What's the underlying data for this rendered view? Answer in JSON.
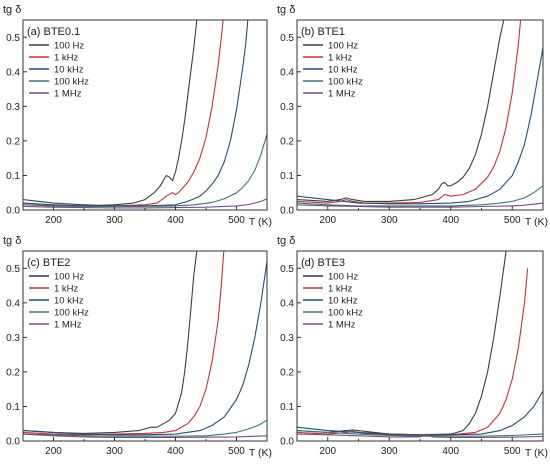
{
  "chart_data": [
    {
      "type": "line",
      "title": "(a) BTE0.1",
      "ylabel": "tg δ",
      "xlabel": "T (K)",
      "xlim": [
        150,
        550
      ],
      "ylim": [
        0,
        0.55
      ],
      "xticks": [
        200,
        300,
        400,
        500
      ],
      "yticks": [
        0.0,
        0.1,
        0.2,
        0.3,
        0.4,
        0.5
      ],
      "legend": "top-left",
      "grid": false,
      "series": [
        {
          "name": "100 Hz",
          "color": "#3d3d3d",
          "x": [
            150,
            200,
            250,
            300,
            330,
            350,
            365,
            375,
            380,
            385,
            390,
            395,
            400,
            405,
            410,
            415,
            420,
            425,
            430,
            435,
            440,
            445,
            450
          ],
          "y": [
            0.02,
            0.015,
            0.012,
            0.015,
            0.02,
            0.03,
            0.05,
            0.07,
            0.085,
            0.1,
            0.095,
            0.085,
            0.11,
            0.15,
            0.2,
            0.26,
            0.33,
            0.4,
            0.47,
            0.55,
            0.6,
            0.6,
            0.6
          ]
        },
        {
          "name": "1 kHz",
          "color": "#c0343c",
          "x": [
            150,
            200,
            250,
            300,
            350,
            370,
            385,
            395,
            400,
            405,
            410,
            415,
            420,
            430,
            440,
            450,
            460,
            470,
            475,
            480
          ],
          "y": [
            0.015,
            0.012,
            0.01,
            0.012,
            0.015,
            0.02,
            0.04,
            0.05,
            0.045,
            0.05,
            0.06,
            0.07,
            0.08,
            0.11,
            0.15,
            0.21,
            0.3,
            0.42,
            0.5,
            0.58
          ]
        },
        {
          "name": "10 kHz",
          "color": "#2b4c6f",
          "x": [
            150,
            200,
            250,
            300,
            350,
            400,
            420,
            440,
            450,
            460,
            470,
            480,
            490,
            500,
            510,
            515,
            520
          ],
          "y": [
            0.03,
            0.02,
            0.015,
            0.012,
            0.012,
            0.015,
            0.025,
            0.04,
            0.055,
            0.075,
            0.1,
            0.14,
            0.2,
            0.29,
            0.41,
            0.48,
            0.58
          ]
        },
        {
          "name": "100 kHz",
          "color": "#3a7a6c",
          "x": [
            150,
            200,
            250,
            300,
            350,
            400,
            430,
            460,
            480,
            500,
            510,
            520,
            530,
            540,
            550
          ],
          "y": [
            0.015,
            0.012,
            0.01,
            0.01,
            0.01,
            0.012,
            0.015,
            0.022,
            0.032,
            0.05,
            0.065,
            0.085,
            0.115,
            0.16,
            0.22
          ]
        },
        {
          "name": "1 MHz",
          "color": "#7b4a8e",
          "x": [
            150,
            200,
            250,
            300,
            350,
            400,
            450,
            500,
            520,
            540,
            550
          ],
          "y": [
            0.01,
            0.008,
            0.007,
            0.006,
            0.006,
            0.007,
            0.008,
            0.012,
            0.016,
            0.025,
            0.032
          ]
        }
      ]
    },
    {
      "type": "line",
      "title": "(b) BTE1",
      "ylabel": "tg δ",
      "xlabel": "T (K)",
      "xlim": [
        150,
        550
      ],
      "ylim": [
        0,
        0.55
      ],
      "xticks": [
        200,
        300,
        400,
        500
      ],
      "yticks": [
        0.0,
        0.1,
        0.2,
        0.3,
        0.4,
        0.5
      ],
      "legend": "top-left",
      "grid": false,
      "series": [
        {
          "name": "100 Hz",
          "color": "#3d3d3d",
          "x": [
            150,
            200,
            220,
            230,
            240,
            260,
            300,
            340,
            370,
            380,
            385,
            390,
            395,
            400,
            410,
            420,
            430,
            440,
            450,
            460,
            470,
            480,
            490,
            495
          ],
          "y": [
            0.03,
            0.025,
            0.03,
            0.035,
            0.03,
            0.025,
            0.025,
            0.03,
            0.045,
            0.06,
            0.075,
            0.08,
            0.07,
            0.07,
            0.08,
            0.095,
            0.12,
            0.16,
            0.22,
            0.3,
            0.4,
            0.5,
            0.58,
            0.6
          ]
        },
        {
          "name": "1 kHz",
          "color": "#c0343c",
          "x": [
            150,
            200,
            220,
            230,
            240,
            260,
            300,
            350,
            380,
            390,
            400,
            420,
            440,
            460,
            470,
            480,
            490,
            500,
            510,
            515
          ],
          "y": [
            0.025,
            0.02,
            0.025,
            0.03,
            0.025,
            0.02,
            0.02,
            0.022,
            0.03,
            0.045,
            0.04,
            0.045,
            0.06,
            0.095,
            0.125,
            0.17,
            0.24,
            0.34,
            0.48,
            0.58
          ]
        },
        {
          "name": "10 kHz",
          "color": "#2b4c6f",
          "x": [
            150,
            200,
            250,
            300,
            350,
            400,
            430,
            460,
            480,
            500,
            510,
            520,
            530,
            540,
            550
          ],
          "y": [
            0.04,
            0.03,
            0.02,
            0.018,
            0.018,
            0.02,
            0.025,
            0.04,
            0.06,
            0.1,
            0.14,
            0.19,
            0.27,
            0.37,
            0.47
          ]
        },
        {
          "name": "100 kHz",
          "color": "#3a7a6c",
          "x": [
            150,
            200,
            250,
            300,
            350,
            400,
            450,
            480,
            500,
            520,
            535,
            550
          ],
          "y": [
            0.02,
            0.015,
            0.012,
            0.012,
            0.012,
            0.012,
            0.015,
            0.02,
            0.025,
            0.035,
            0.05,
            0.07
          ]
        },
        {
          "name": "1 MHz",
          "color": "#7b4a8e",
          "x": [
            150,
            200,
            250,
            300,
            350,
            400,
            450,
            500,
            520,
            540,
            550
          ],
          "y": [
            0.015,
            0.012,
            0.01,
            0.008,
            0.008,
            0.008,
            0.01,
            0.012,
            0.014,
            0.018,
            0.02
          ]
        }
      ]
    },
    {
      "type": "line",
      "title": "(c) BTE2",
      "ylabel": "tg δ",
      "xlabel": "T (K)",
      "xlim": [
        150,
        550
      ],
      "ylim": [
        0,
        0.55
      ],
      "xticks": [
        200,
        300,
        400,
        500
      ],
      "yticks": [
        0.0,
        0.1,
        0.2,
        0.3,
        0.4,
        0.5
      ],
      "legend": "top-left",
      "grid": false,
      "series": [
        {
          "name": "100 Hz",
          "color": "#3d3d3d",
          "x": [
            150,
            200,
            250,
            300,
            340,
            350,
            360,
            370,
            380,
            390,
            400,
            410,
            415,
            420,
            425,
            430,
            435,
            440
          ],
          "y": [
            0.03,
            0.025,
            0.022,
            0.025,
            0.03,
            0.035,
            0.04,
            0.04,
            0.05,
            0.06,
            0.08,
            0.14,
            0.2,
            0.28,
            0.38,
            0.48,
            0.55,
            0.6
          ]
        },
        {
          "name": "1 kHz",
          "color": "#c0343c",
          "x": [
            150,
            200,
            250,
            300,
            350,
            380,
            400,
            420,
            430,
            440,
            450,
            460,
            470,
            475,
            480
          ],
          "y": [
            0.025,
            0.02,
            0.018,
            0.02,
            0.022,
            0.025,
            0.03,
            0.05,
            0.07,
            0.1,
            0.15,
            0.23,
            0.35,
            0.45,
            0.57
          ]
        },
        {
          "name": "10 kHz",
          "color": "#2b4c6f",
          "x": [
            150,
            200,
            250,
            300,
            350,
            400,
            440,
            460,
            480,
            500,
            510,
            520,
            530,
            540,
            550
          ],
          "y": [
            0.03,
            0.025,
            0.02,
            0.018,
            0.018,
            0.02,
            0.03,
            0.045,
            0.07,
            0.12,
            0.16,
            0.22,
            0.3,
            0.4,
            0.52
          ]
        },
        {
          "name": "100 kHz",
          "color": "#3a7a6c",
          "x": [
            150,
            200,
            250,
            300,
            350,
            400,
            450,
            480,
            500,
            520,
            535,
            550
          ],
          "y": [
            0.02,
            0.018,
            0.015,
            0.014,
            0.014,
            0.014,
            0.015,
            0.02,
            0.025,
            0.035,
            0.045,
            0.06
          ]
        },
        {
          "name": "1 MHz",
          "color": "#7b4a8e",
          "x": [
            150,
            200,
            250,
            300,
            350,
            400,
            450,
            500,
            550
          ],
          "y": [
            0.02,
            0.015,
            0.012,
            0.01,
            0.01,
            0.01,
            0.011,
            0.012,
            0.015
          ]
        }
      ]
    },
    {
      "type": "line",
      "title": "(d) BTE3",
      "ylabel": "tg δ",
      "xlabel": "T (K)",
      "xlim": [
        150,
        550
      ],
      "ylim": [
        0,
        0.55
      ],
      "xticks": [
        200,
        300,
        400,
        500
      ],
      "yticks": [
        0.0,
        0.1,
        0.2,
        0.3,
        0.4,
        0.5
      ],
      "legend": "top-left",
      "grid": false,
      "series": [
        {
          "name": "100 Hz",
          "color": "#3d3d3d",
          "x": [
            150,
            200,
            230,
            240,
            260,
            300,
            350,
            400,
            420,
            430,
            440,
            450,
            460,
            470,
            480,
            490,
            495
          ],
          "y": [
            0.03,
            0.025,
            0.03,
            0.032,
            0.028,
            0.02,
            0.018,
            0.02,
            0.03,
            0.05,
            0.08,
            0.13,
            0.2,
            0.3,
            0.42,
            0.55,
            0.6
          ]
        },
        {
          "name": "1 kHz",
          "color": "#c0343c",
          "x": [
            150,
            200,
            230,
            240,
            260,
            300,
            350,
            400,
            440,
            460,
            480,
            490,
            500,
            510,
            520,
            525
          ],
          "y": [
            0.025,
            0.02,
            0.025,
            0.028,
            0.022,
            0.018,
            0.016,
            0.018,
            0.025,
            0.04,
            0.08,
            0.12,
            0.18,
            0.27,
            0.4,
            0.5
          ]
        },
        {
          "name": "10 kHz",
          "color": "#2b4c6f",
          "x": [
            150,
            200,
            250,
            300,
            350,
            400,
            450,
            480,
            500,
            520,
            535,
            550
          ],
          "y": [
            0.04,
            0.03,
            0.025,
            0.02,
            0.018,
            0.018,
            0.02,
            0.03,
            0.045,
            0.07,
            0.1,
            0.145
          ]
        },
        {
          "name": "100 kHz",
          "color": "#3a7a6c",
          "x": [
            150,
            200,
            250,
            300,
            350,
            400,
            450,
            500,
            550
          ],
          "y": [
            0.03,
            0.025,
            0.02,
            0.016,
            0.014,
            0.014,
            0.014,
            0.016,
            0.02
          ]
        },
        {
          "name": "1 MHz",
          "color": "#7b4a8e",
          "x": [
            150,
            200,
            250,
            300,
            350,
            360,
            370,
            400,
            450,
            500,
            550
          ],
          "y": [
            0.02,
            0.018,
            0.015,
            0.012,
            0.012,
            0.02,
            0.012,
            0.01,
            0.01,
            0.011,
            0.013
          ]
        }
      ]
    }
  ]
}
